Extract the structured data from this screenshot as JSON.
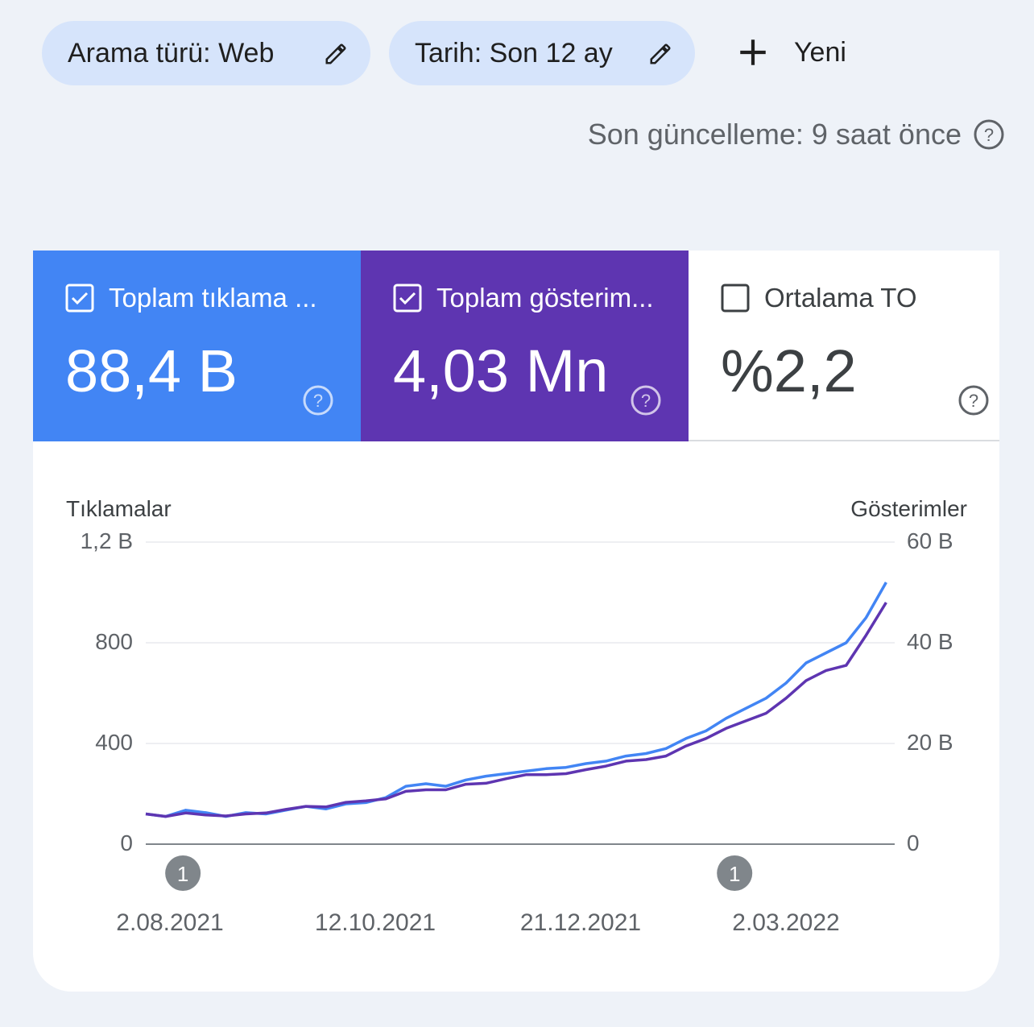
{
  "filters": {
    "search_type": "Arama türü: Web",
    "date": "Tarih: Son 12 ay",
    "new_label": "Yeni",
    "icons": [
      "pencil-icon",
      "plus-icon",
      "help-icon"
    ]
  },
  "last_update": "Son güncelleme: 9 saat önce",
  "metrics": {
    "clicks": {
      "label": "Toplam tıklama ...",
      "value": "88,4 B",
      "checked": true,
      "color": "#4285f4"
    },
    "impressions": {
      "label": "Toplam gösterim...",
      "value": "4,03 Mn",
      "checked": true,
      "color": "#5e35b1"
    },
    "ctr": {
      "label": "Ortalama TO",
      "value": "%2,2",
      "checked": false
    }
  },
  "chart_data": {
    "type": "line",
    "left_axis": {
      "title": "Tıklamalar",
      "ticks": [
        "0",
        "400",
        "800",
        "1,2 B"
      ],
      "range": [
        0,
        1200
      ]
    },
    "right_axis": {
      "title": "Gösterimler",
      "ticks": [
        "0",
        "20 B",
        "40 B",
        "60 B"
      ],
      "range": [
        0,
        60000
      ]
    },
    "x_range": [
      "2021-07-20",
      "2022-04-08"
    ],
    "x_ticks": [
      "2.08.2021",
      "12.10.2021",
      "21.12.2021",
      "2.03.2022"
    ],
    "annotations": [
      {
        "label": "1",
        "date": "2021-08-02"
      },
      {
        "label": "1",
        "date": "2022-02-11"
      }
    ],
    "grid": true,
    "series": [
      {
        "axis": "left",
        "color": "#4285f4",
        "points": [
          [
            "2021-07-20",
            120
          ],
          [
            "2021-07-27",
            110
          ],
          [
            "2021-08-03",
            135
          ],
          [
            "2021-08-10",
            125
          ],
          [
            "2021-08-17",
            110
          ],
          [
            "2021-08-24",
            125
          ],
          [
            "2021-08-31",
            120
          ],
          [
            "2021-09-07",
            135
          ],
          [
            "2021-09-14",
            150
          ],
          [
            "2021-09-21",
            140
          ],
          [
            "2021-09-28",
            160
          ],
          [
            "2021-10-05",
            165
          ],
          [
            "2021-10-12",
            185
          ],
          [
            "2021-10-19",
            230
          ],
          [
            "2021-10-26",
            240
          ],
          [
            "2021-11-02",
            230
          ],
          [
            "2021-11-09",
            255
          ],
          [
            "2021-11-16",
            270
          ],
          [
            "2021-11-23",
            280
          ],
          [
            "2021-11-30",
            290
          ],
          [
            "2021-12-07",
            300
          ],
          [
            "2021-12-14",
            305
          ],
          [
            "2021-12-21",
            320
          ],
          [
            "2021-12-28",
            330
          ],
          [
            "2022-01-04",
            350
          ],
          [
            "2022-01-11",
            360
          ],
          [
            "2022-01-18",
            380
          ],
          [
            "2022-01-25",
            420
          ],
          [
            "2022-02-01",
            450
          ],
          [
            "2022-02-08",
            500
          ],
          [
            "2022-02-15",
            540
          ],
          [
            "2022-02-22",
            580
          ],
          [
            "2022-03-01",
            640
          ],
          [
            "2022-03-08",
            720
          ],
          [
            "2022-03-15",
            760
          ],
          [
            "2022-03-22",
            800
          ],
          [
            "2022-03-29",
            900
          ],
          [
            "2022-04-05",
            1040
          ]
        ]
      },
      {
        "axis": "right",
        "color": "#5e35b1",
        "points": [
          [
            "2021-07-20",
            6000
          ],
          [
            "2021-07-27",
            5500
          ],
          [
            "2021-08-03",
            6200
          ],
          [
            "2021-08-10",
            5800
          ],
          [
            "2021-08-17",
            5600
          ],
          [
            "2021-08-24",
            6000
          ],
          [
            "2021-08-31",
            6200
          ],
          [
            "2021-09-07",
            6900
          ],
          [
            "2021-09-14",
            7500
          ],
          [
            "2021-09-21",
            7400
          ],
          [
            "2021-09-28",
            8300
          ],
          [
            "2021-10-05",
            8600
          ],
          [
            "2021-10-12",
            9000
          ],
          [
            "2021-10-19",
            10500
          ],
          [
            "2021-10-26",
            10800
          ],
          [
            "2021-11-02",
            10800
          ],
          [
            "2021-11-09",
            11900
          ],
          [
            "2021-11-16",
            12100
          ],
          [
            "2021-11-23",
            13000
          ],
          [
            "2021-11-30",
            13800
          ],
          [
            "2021-12-07",
            13800
          ],
          [
            "2021-12-14",
            14000
          ],
          [
            "2021-12-21",
            14800
          ],
          [
            "2021-12-28",
            15500
          ],
          [
            "2022-01-04",
            16500
          ],
          [
            "2022-01-11",
            16800
          ],
          [
            "2022-01-18",
            17500
          ],
          [
            "2022-01-25",
            19500
          ],
          [
            "2022-02-01",
            21000
          ],
          [
            "2022-02-08",
            23000
          ],
          [
            "2022-02-15",
            24500
          ],
          [
            "2022-02-22",
            26000
          ],
          [
            "2022-03-01",
            29000
          ],
          [
            "2022-03-08",
            32500
          ],
          [
            "2022-03-15",
            34500
          ],
          [
            "2022-03-22",
            35500
          ],
          [
            "2022-03-29",
            41500
          ],
          [
            "2022-04-05",
            48000
          ]
        ]
      }
    ]
  }
}
